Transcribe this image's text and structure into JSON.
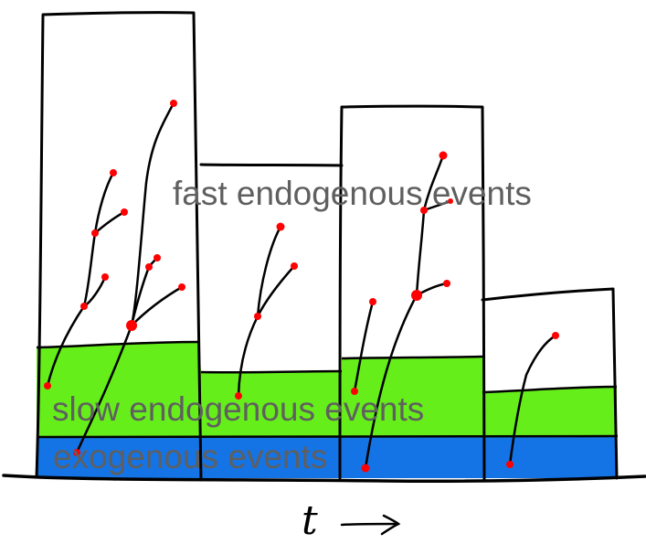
{
  "labels": {
    "fast": "fast endogenous events",
    "slow": "slow endogenous events",
    "exogenous": "exogenous events",
    "time": "t"
  },
  "colors": {
    "slow_band": "#66ee1b",
    "exo_band": "#1474e6",
    "event_dot": "#ff0000",
    "outline": "#000000",
    "label_text": "#5f5f5f"
  }
}
